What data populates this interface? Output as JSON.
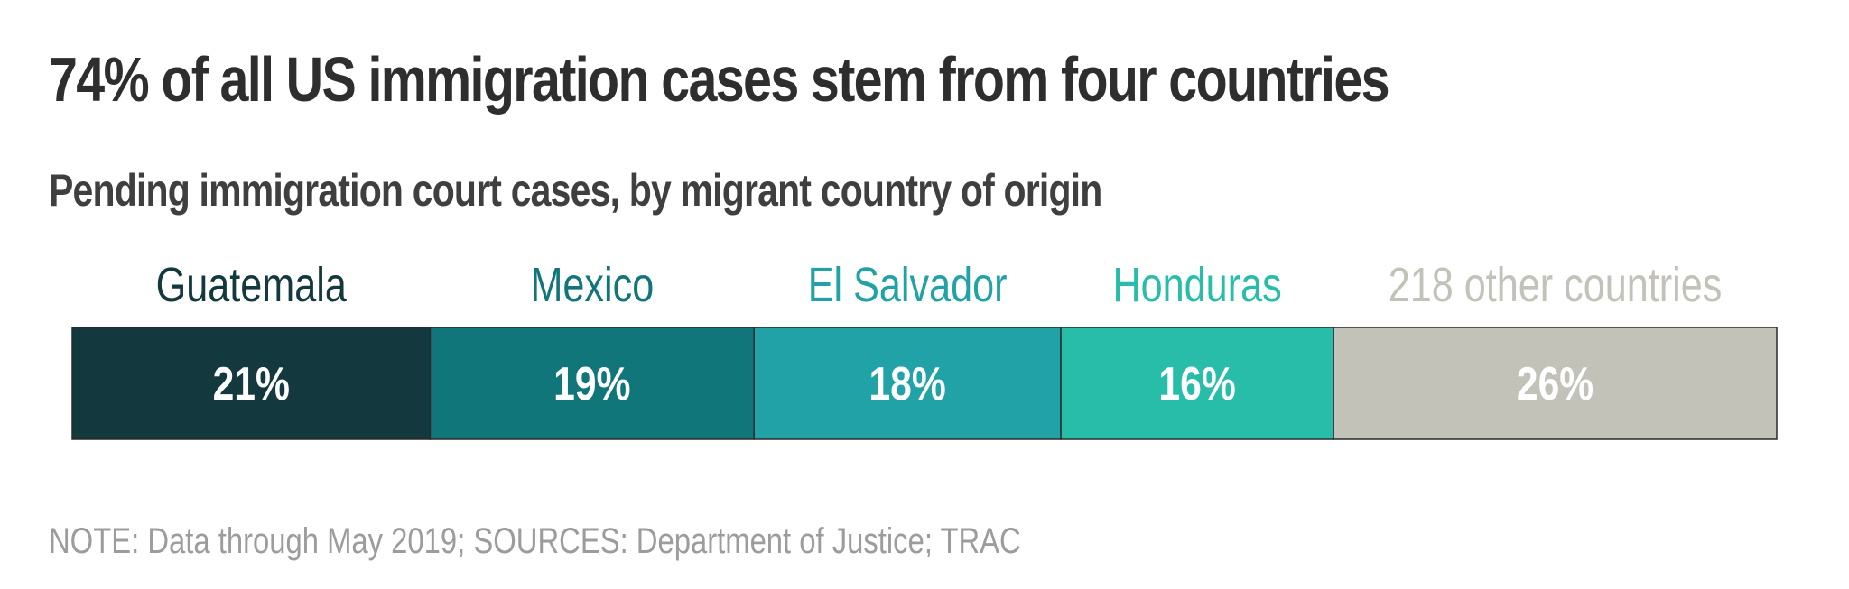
{
  "header": {
    "title": "74% of all US immigration cases stem from four countries",
    "subtitle": "Pending immigration court cases, by migrant country of origin"
  },
  "footer": {
    "note": "NOTE: Data through May 2019; SOURCES: Department of Justice; TRAC"
  },
  "chart_data": {
    "type": "bar",
    "orientation": "stacked-horizontal",
    "title": "74% of all US immigration cases stem from four countries",
    "subtitle": "Pending immigration court cases, by migrant country of origin",
    "categories": [
      "Guatemala",
      "Mexico",
      "El Salvador",
      "Honduras",
      "218 other countries"
    ],
    "values": [
      21,
      19,
      18,
      16,
      26
    ],
    "value_labels": [
      "21%",
      "19%",
      "18%",
      "16%",
      "26%"
    ],
    "colors": [
      "#13383d",
      "#10767a",
      "#20a2a7",
      "#27bda9",
      "#c3c2b8"
    ],
    "label_colors": [
      "#13383d",
      "#10767a",
      "#20a2a7",
      "#27bda9",
      "#c3c2b8"
    ],
    "value_label_color": "#ffffff",
    "xlim": [
      0,
      100
    ],
    "grid": false,
    "legend": "labels above segments"
  }
}
